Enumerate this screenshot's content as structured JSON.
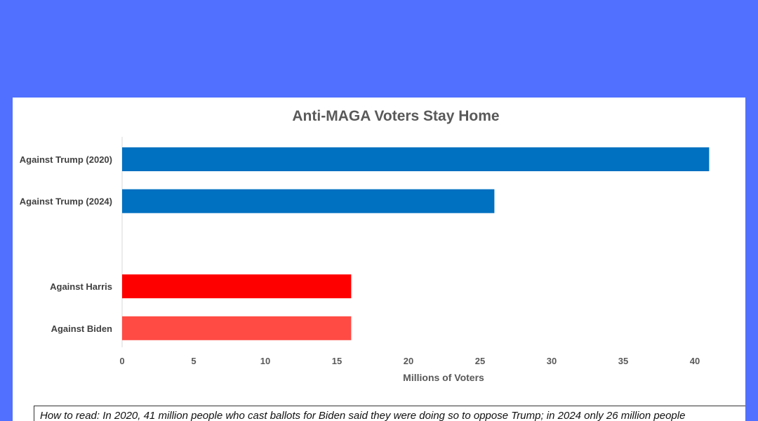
{
  "chart_data": {
    "type": "bar",
    "orientation": "horizontal",
    "title": "Anti-MAGA Voters Stay Home",
    "xlabel": "Millions of Voters",
    "ylabel": "",
    "xlim": [
      0,
      42
    ],
    "ticks": [
      0,
      5,
      10,
      15,
      20,
      25,
      30,
      35,
      40
    ],
    "grid": false,
    "bars": [
      {
        "label": "Against Trump (2020)",
        "value": 41,
        "color": "#0070c0"
      },
      {
        "label": "Against Trump (2024)",
        "value": 26,
        "color": "#0070c0"
      },
      {
        "label": "",
        "value": null,
        "color": null
      },
      {
        "label": "Against Harris",
        "value": 16,
        "color": "#ff0000"
      },
      {
        "label": "Against Biden",
        "value": 16,
        "color": "#ff4b44"
      }
    ]
  },
  "note": "How to read: In 2020, 41 million people who cast ballots for Biden said they were doing so to oppose Trump; in 2024 only 26 million people"
}
